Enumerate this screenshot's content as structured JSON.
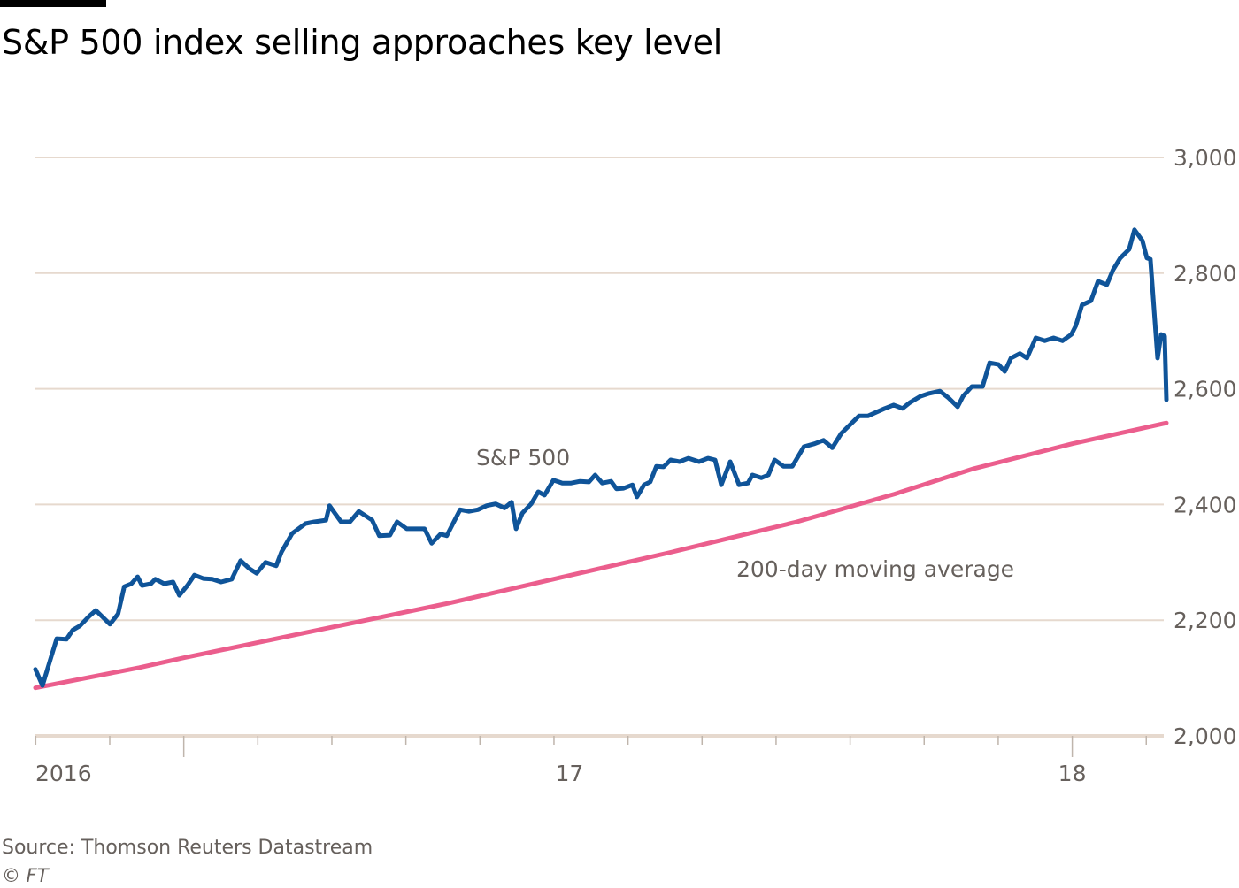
{
  "title": "S&P 500 index selling approaches key level",
  "source": "Source: Thomson Reuters Datastream",
  "credit": "© FT",
  "chart_data": {
    "type": "line",
    "title": "S&P 500 index selling approaches key level",
    "xlabel": "",
    "ylabel": "",
    "x_units": "decimal year",
    "xlim": [
      2016.833,
      2018.106
    ],
    "ylim": [
      2000,
      3000
    ],
    "y_axis_side": "right",
    "yticks": [
      2000,
      2200,
      2400,
      2600,
      2800,
      3000
    ],
    "ytick_labels": [
      "2,000",
      "2,200",
      "2,400",
      "2,600",
      "2,800",
      "3,000"
    ],
    "xtick_labels": [
      {
        "label": "2016",
        "x": 2016.833
      },
      {
        "label": "17",
        "x": 2017.434
      },
      {
        "label": "18",
        "x": 2018.0
      }
    ],
    "grid": true,
    "colors": {
      "sp500": "#0f5499",
      "ma200": "#eb5e8d",
      "grid": "#e6d9ce"
    },
    "series": [
      {
        "name": "S&P 500",
        "color": "#0f5499",
        "x": [
          2016.833,
          2016.841,
          2016.851,
          2016.857,
          2016.868,
          2016.875,
          2016.883,
          2016.893,
          2016.901,
          2016.911,
          2016.917,
          2016.926,
          2016.933,
          2016.941,
          2016.948,
          2016.953,
          2016.963,
          2016.968,
          2016.978,
          2016.988,
          2016.995,
          2017.004,
          2017.012,
          2017.022,
          2017.032,
          2017.042,
          2017.054,
          2017.064,
          2017.074,
          2017.082,
          2017.092,
          2017.104,
          2017.11,
          2017.122,
          2017.137,
          2017.147,
          2017.16,
          2017.164,
          2017.17,
          2017.177,
          2017.187,
          2017.197,
          2017.207,
          2017.212,
          2017.22,
          2017.232,
          2017.24,
          2017.251,
          2017.261,
          2017.271,
          2017.279,
          2017.289,
          2017.296,
          2017.303,
          2017.311,
          2017.321,
          2017.331,
          2017.341,
          2017.351,
          2017.361,
          2017.369,
          2017.374,
          2017.381,
          2017.391,
          2017.399,
          2017.406,
          2017.416,
          2017.426,
          2017.436,
          2017.446,
          2017.456,
          2017.463,
          2017.471,
          2017.481,
          2017.487,
          2017.495,
          2017.505,
          2017.51,
          2017.518,
          2017.525,
          2017.532,
          2017.54,
          2017.548,
          2017.558,
          2017.568,
          2017.58,
          2017.59,
          2017.598,
          2017.605,
          2017.615,
          2017.625,
          2017.635,
          2017.64,
          2017.65,
          2017.658,
          2017.665,
          2017.675,
          2017.685,
          2017.698,
          2017.71,
          2017.72,
          2017.73,
          2017.74,
          2017.75,
          2017.76,
          2017.77,
          2017.78,
          2017.789,
          2017.799,
          2017.809,
          2017.817,
          2017.829,
          2017.839,
          2017.851,
          2017.861,
          2017.871,
          2017.877,
          2017.887,
          2017.899,
          2017.907,
          2017.917,
          2017.924,
          2017.931,
          2017.941,
          2017.949,
          2017.959,
          2017.969,
          2017.979,
          2017.989,
          2017.999,
          2018.004,
          2018.011,
          2018.021,
          2018.029,
          2018.039,
          2018.046,
          2018.054,
          2018.064,
          2018.07,
          2018.079,
          2018.084,
          2018.088,
          2018.096,
          2018.1,
          2018.104,
          2018.106
        ],
        "values": [
          2115,
          2087,
          2138,
          2168,
          2167,
          2183,
          2190,
          2206,
          2217,
          2202,
          2193,
          2211,
          2258,
          2263,
          2275,
          2260,
          2263,
          2271,
          2263,
          2266,
          2243,
          2260,
          2278,
          2272,
          2271,
          2266,
          2271,
          2303,
          2289,
          2281,
          2300,
          2294,
          2318,
          2350,
          2367,
          2370,
          2373,
          2398,
          2385,
          2370,
          2370,
          2388,
          2378,
          2373,
          2346,
          2347,
          2370,
          2358,
          2358,
          2358,
          2333,
          2349,
          2346,
          2367,
          2391,
          2388,
          2391,
          2398,
          2401,
          2394,
          2404,
          2358,
          2385,
          2401,
          2422,
          2416,
          2442,
          2437,
          2437,
          2440,
          2439,
          2451,
          2437,
          2440,
          2427,
          2428,
          2434,
          2413,
          2434,
          2439,
          2466,
          2465,
          2477,
          2474,
          2480,
          2474,
          2480,
          2477,
          2434,
          2474,
          2434,
          2437,
          2451,
          2446,
          2451,
          2477,
          2466,
          2466,
          2500,
          2505,
          2511,
          2498,
          2523,
          2538,
          2553,
          2553,
          2560,
          2566,
          2572,
          2566,
          2576,
          2587,
          2592,
          2596,
          2584,
          2569,
          2587,
          2604,
          2604,
          2645,
          2642,
          2630,
          2653,
          2661,
          2653,
          2688,
          2683,
          2688,
          2683,
          2694,
          2709,
          2745,
          2752,
          2786,
          2780,
          2806,
          2826,
          2841,
          2875,
          2856,
          2826,
          2824,
          2653,
          2694,
          2691,
          2581
        ]
      },
      {
        "name": "200-day moving average",
        "color": "#eb5e8d",
        "x": [
          2016.833,
          2016.95,
          2017.0,
          2017.164,
          2017.3,
          2017.416,
          2017.55,
          2017.69,
          2017.8,
          2017.889,
          2018.0,
          2018.106
        ],
        "values": [
          2083,
          2118,
          2135,
          2187,
          2230,
          2271,
          2318,
          2370,
          2418,
          2462,
          2505,
          2541
        ]
      }
    ]
  }
}
